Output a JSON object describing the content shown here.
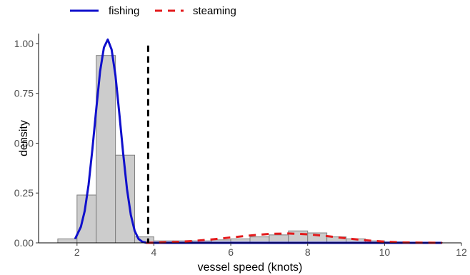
{
  "chart_data": {
    "type": "bar",
    "xlabel": "vessel speed (knots)",
    "ylabel": "density",
    "xlim": [
      1.0,
      12.0
    ],
    "ylim": [
      0.0,
      1.05
    ],
    "x_ticks": [
      2,
      4,
      6,
      8,
      10,
      12
    ],
    "y_ticks": [
      0.0,
      0.25,
      0.5,
      0.75,
      1.0
    ],
    "x_tick_labels": [
      "2",
      "4",
      "6",
      "8",
      "10",
      "12"
    ],
    "y_tick_labels": [
      "0.00",
      "0.25",
      "0.50",
      "0.75",
      "1.00"
    ],
    "grid": false,
    "legend_position": "top-left",
    "histogram": {
      "bin_width": 0.5,
      "bins": [
        {
          "x0": 1.5,
          "x1": 2.0,
          "density": 0.02
        },
        {
          "x0": 2.0,
          "x1": 2.5,
          "density": 0.24
        },
        {
          "x0": 2.5,
          "x1": 3.0,
          "density": 0.94
        },
        {
          "x0": 3.0,
          "x1": 3.5,
          "density": 0.44
        },
        {
          "x0": 3.5,
          "x1": 4.0,
          "density": 0.03
        },
        {
          "x0": 4.0,
          "x1": 4.5,
          "density": 0.01
        },
        {
          "x0": 4.5,
          "x1": 5.0,
          "density": 0.01
        },
        {
          "x0": 5.0,
          "x1": 5.5,
          "density": 0.01
        },
        {
          "x0": 5.5,
          "x1": 6.0,
          "density": 0.015
        },
        {
          "x0": 6.0,
          "x1": 6.5,
          "density": 0.02
        },
        {
          "x0": 6.5,
          "x1": 7.0,
          "density": 0.03
        },
        {
          "x0": 7.0,
          "x1": 7.5,
          "density": 0.04
        },
        {
          "x0": 7.5,
          "x1": 8.0,
          "density": 0.06
        },
        {
          "x0": 8.0,
          "x1": 8.5,
          "density": 0.05
        },
        {
          "x0": 8.5,
          "x1": 9.0,
          "density": 0.03
        },
        {
          "x0": 9.0,
          "x1": 9.5,
          "density": 0.02
        },
        {
          "x0": 9.5,
          "x1": 10.0,
          "density": 0.01
        },
        {
          "x0": 10.0,
          "x1": 10.5,
          "density": 0.005
        },
        {
          "x0": 10.5,
          "x1": 11.0,
          "density": 0.003
        },
        {
          "x0": 11.0,
          "x1": 11.5,
          "density": 0.002
        }
      ]
    },
    "series": [
      {
        "name": "fishing",
        "type": "line",
        "style": "solid",
        "color": "#1010cc",
        "x": [
          1.95,
          2.1,
          2.2,
          2.3,
          2.4,
          2.5,
          2.6,
          2.7,
          2.8,
          2.9,
          3.0,
          3.1,
          3.2,
          3.3,
          3.4,
          3.5,
          3.6,
          3.7,
          3.8,
          4.0,
          5.0,
          6.0,
          7.0,
          8.0,
          9.0,
          10.0,
          11.0,
          11.5
        ],
        "y": [
          0.02,
          0.08,
          0.16,
          0.29,
          0.47,
          0.67,
          0.86,
          0.98,
          1.02,
          0.97,
          0.84,
          0.65,
          0.45,
          0.27,
          0.14,
          0.06,
          0.02,
          0.005,
          0.001,
          0,
          0,
          0,
          0,
          0,
          0,
          0,
          0,
          0
        ]
      },
      {
        "name": "steaming",
        "type": "line",
        "style": "dashed",
        "color": "#e31a1c",
        "x": [
          3.8,
          4.5,
          5.0,
          5.5,
          6.0,
          6.5,
          7.0,
          7.5,
          8.0,
          8.5,
          9.0,
          9.5,
          10.0,
          10.5,
          11.0,
          11.5
        ],
        "y": [
          0.0,
          0.004,
          0.009,
          0.017,
          0.027,
          0.037,
          0.045,
          0.047,
          0.043,
          0.034,
          0.023,
          0.013,
          0.006,
          0.002,
          0.001,
          0.0
        ]
      }
    ],
    "threshold": {
      "x": 3.85,
      "style": "dashed",
      "color": "#000000"
    }
  }
}
